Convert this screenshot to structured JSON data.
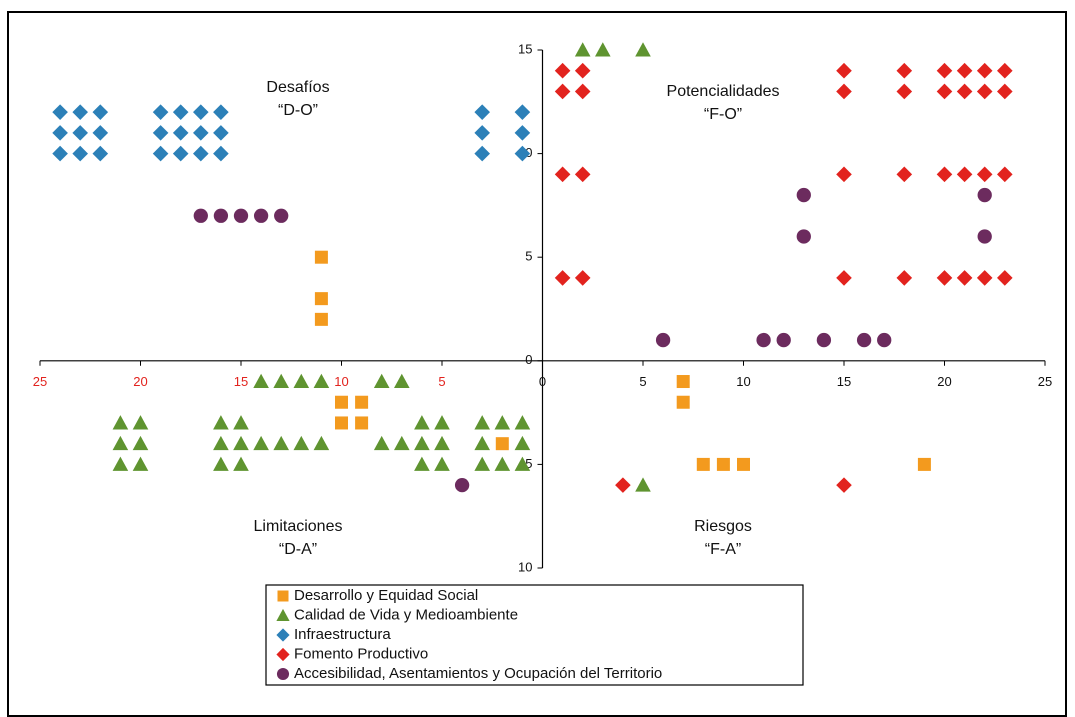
{
  "chart_data": {
    "type": "scatter",
    "xlim": [
      -25,
      25
    ],
    "ylim": [
      -10,
      15
    ],
    "xticks": [
      {
        "value": -25,
        "label": "25"
      },
      {
        "value": -20,
        "label": "20"
      },
      {
        "value": -15,
        "label": "15"
      },
      {
        "value": -10,
        "label": "10"
      },
      {
        "value": -5,
        "label": "5"
      },
      0,
      5,
      10,
      15,
      20,
      25
    ],
    "yticks": [
      {
        "value": -10,
        "label": "10"
      },
      {
        "value": -5,
        "label": "5"
      },
      0,
      5,
      10,
      15
    ],
    "quadrant_labels": [
      {
        "title": "Desafíos",
        "code": "“D-O”"
      },
      {
        "title": "Potencialidades",
        "code": "“F-O”"
      },
      {
        "title": "Limitaciones",
        "code": "“D-A”"
      },
      {
        "title": "Riesgos",
        "code": "“F-A”"
      }
    ],
    "series": [
      {
        "name": "Desarrollo y Equidad Social",
        "color": "#f39a1e",
        "marker": "square",
        "x": [
          -11,
          -11,
          -11,
          -10,
          -9,
          -10,
          -9,
          -2,
          7,
          7,
          8,
          9,
          10,
          19
        ],
        "y": [
          5,
          3,
          2,
          -2,
          -2,
          -3,
          -3,
          -4,
          -1,
          -2,
          -5,
          -5,
          -5,
          -5
        ]
      },
      {
        "name": "Calidad de Vida y Medioambiente",
        "color": "#5f9430",
        "marker": "triangle",
        "x": [
          -14,
          -13,
          -12,
          -11,
          -8,
          -7,
          -21,
          -20,
          -16,
          -15,
          -6,
          -5,
          -3,
          -2,
          -1,
          -21,
          -20,
          -16,
          -15,
          -14,
          -13,
          -12,
          -11,
          -8,
          -7,
          -6,
          -5,
          -3,
          -1,
          -21,
          -20,
          -16,
          -15,
          -6,
          -5,
          -3,
          -2,
          -1,
          2,
          3,
          5,
          5
        ],
        "y": [
          -1,
          -1,
          -1,
          -1,
          -1,
          -1,
          -3,
          -3,
          -3,
          -3,
          -3,
          -3,
          -3,
          -3,
          -3,
          -4,
          -4,
          -4,
          -4,
          -4,
          -4,
          -4,
          -4,
          -4,
          -4,
          -4,
          -4,
          -4,
          -4,
          -5,
          -5,
          -5,
          -5,
          -5,
          -5,
          -5,
          -5,
          -5,
          15,
          15,
          15,
          -6
        ]
      },
      {
        "name": "Infraestructura",
        "color": "#2c80b8",
        "marker": "diamond",
        "x": [
          -24,
          -23,
          -22,
          -19,
          -18,
          -17,
          -16,
          -3,
          -1,
          -24,
          -23,
          -22,
          -19,
          -18,
          -17,
          -16,
          -3,
          -1,
          -24,
          -23,
          -22,
          -19,
          -18,
          -17,
          -16,
          -3,
          -1
        ],
        "y": [
          12,
          12,
          12,
          12,
          12,
          12,
          12,
          12,
          12,
          11,
          11,
          11,
          11,
          11,
          11,
          11,
          11,
          11,
          10,
          10,
          10,
          10,
          10,
          10,
          10,
          10,
          10
        ]
      },
      {
        "name": "Fomento Productivo",
        "color": "#e2231e",
        "marker": "diamond",
        "x": [
          1,
          2,
          15,
          18,
          20,
          21,
          22,
          23,
          1,
          2,
          15,
          18,
          20,
          21,
          22,
          23,
          1,
          2,
          15,
          18,
          20,
          21,
          22,
          23,
          1,
          2,
          15,
          18,
          20,
          21,
          22,
          23,
          4,
          15
        ],
        "y": [
          14,
          14,
          14,
          14,
          14,
          14,
          14,
          14,
          13,
          13,
          13,
          13,
          13,
          13,
          13,
          13,
          9,
          9,
          9,
          9,
          9,
          9,
          9,
          9,
          4,
          4,
          4,
          4,
          4,
          4,
          4,
          4,
          -6,
          -6
        ]
      },
      {
        "name": "Accesibilidad, Asentamientos y Ocupación del Territorio",
        "color": "#6c2b5e",
        "marker": "circle",
        "x": [
          -17,
          -16,
          -15,
          -14,
          -13,
          13,
          22,
          13,
          22,
          6,
          11,
          12,
          14,
          16,
          17,
          -4
        ],
        "y": [
          7,
          7,
          7,
          7,
          7,
          8,
          8,
          6,
          6,
          1,
          1,
          1,
          1,
          1,
          1,
          -6
        ]
      }
    ]
  }
}
